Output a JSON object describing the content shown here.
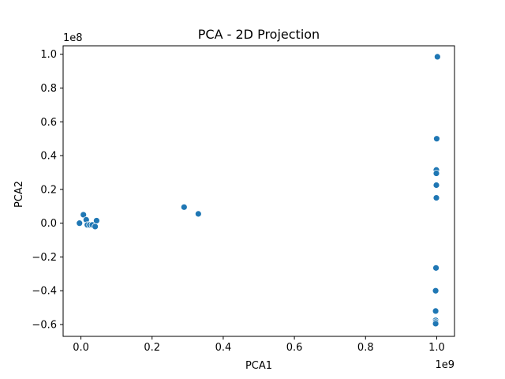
{
  "chart_data": {
    "type": "scatter",
    "title": "PCA - 2D Projection",
    "xlabel": "PCA1",
    "ylabel": "PCA2",
    "x_offset_label": "1e9",
    "y_offset_label": "1e8",
    "xlim": [
      -0.05,
      1.05
    ],
    "ylim": [
      -0.67,
      1.05
    ],
    "x_unit_multiplier": 1000000000,
    "y_unit_multiplier": 100000000,
    "xticks": [
      0.0,
      0.2,
      0.4,
      0.6,
      0.8,
      1.0
    ],
    "xtick_labels": [
      "0.0",
      "0.2",
      "0.4",
      "0.6",
      "0.8",
      "1.0"
    ],
    "yticks": [
      -0.6,
      -0.4,
      -0.2,
      0.0,
      0.2,
      0.4,
      0.6,
      0.8,
      1.0
    ],
    "ytick_labels": [
      "−0.6",
      "−0.4",
      "−0.2",
      "0.0",
      "0.2",
      "0.4",
      "0.6",
      "0.8",
      "1.0"
    ],
    "grid": false,
    "legend": "none",
    "marker_color": "#1f77b4",
    "points": [
      {
        "x": -0.004,
        "y": 0.0
      },
      {
        "x": 0.007,
        "y": 0.05
      },
      {
        "x": 0.015,
        "y": 0.02
      },
      {
        "x": 0.018,
        "y": -0.01
      },
      {
        "x": 0.025,
        "y": -0.01
      },
      {
        "x": 0.032,
        "y": -0.01
      },
      {
        "x": 0.04,
        "y": -0.02
      },
      {
        "x": 0.044,
        "y": 0.015
      },
      {
        "x": 0.29,
        "y": 0.095
      },
      {
        "x": 0.33,
        "y": 0.055
      },
      {
        "x": 1.002,
        "y": 0.985
      },
      {
        "x": 1.0,
        "y": 0.5
      },
      {
        "x": 0.999,
        "y": 0.315
      },
      {
        "x": 0.999,
        "y": 0.295
      },
      {
        "x": 0.999,
        "y": 0.225
      },
      {
        "x": 0.999,
        "y": 0.15
      },
      {
        "x": 0.998,
        "y": -0.265
      },
      {
        "x": 0.997,
        "y": -0.4
      },
      {
        "x": 0.997,
        "y": -0.52
      },
      {
        "x": 0.997,
        "y": -0.575
      },
      {
        "x": 0.997,
        "y": -0.585
      },
      {
        "x": 0.997,
        "y": -0.595
      }
    ]
  }
}
